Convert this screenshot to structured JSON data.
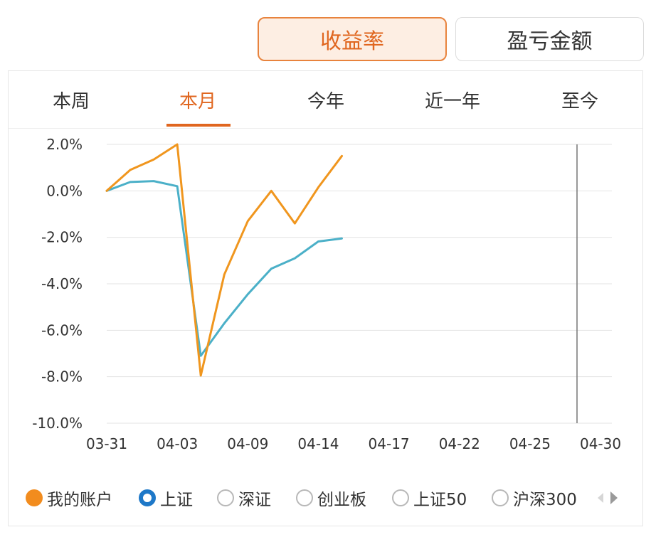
{
  "toggle": {
    "yield_label": "收益率",
    "amount_label": "盈亏金额"
  },
  "tabs": [
    {
      "label": "本周"
    },
    {
      "label": "本月",
      "active": true
    },
    {
      "label": "今年"
    },
    {
      "label": "近一年"
    },
    {
      "label": "至今"
    }
  ],
  "legend": [
    {
      "label": "我的账户",
      "state": "filled-orange"
    },
    {
      "label": "上证",
      "state": "ring-blue"
    },
    {
      "label": "深证",
      "state": "empty"
    },
    {
      "label": "创业板",
      "state": "empty"
    },
    {
      "label": "上证50",
      "state": "empty"
    },
    {
      "label": "沪深300",
      "state": "empty"
    }
  ],
  "colors": {
    "accent": "#e0661f",
    "account_line": "#f0961e",
    "index_line": "#4bb0c8"
  },
  "chart_data": {
    "type": "line",
    "x_ticks": [
      "03-31",
      "04-03",
      "04-09",
      "04-14",
      "04-17",
      "04-22",
      "04-25",
      "04-30"
    ],
    "y_ticks": [
      "2.0%",
      "0.0%",
      "-2.0%",
      "-4.0%",
      "-6.0%",
      "-8.0%",
      "-10.0%"
    ],
    "ylim": [
      -10,
      2
    ],
    "vertical_marker_index": 20,
    "series": [
      {
        "name": "我的账户",
        "color": "#f0961e",
        "values": [
          0.0,
          0.9,
          1.35,
          2.0,
          -7.95,
          -3.6,
          -1.3,
          0.0,
          -1.4,
          0.15,
          1.5
        ]
      },
      {
        "name": "上证",
        "color": "#4bb0c8",
        "values": [
          0.0,
          0.38,
          0.42,
          0.2,
          -7.1,
          -5.7,
          -4.45,
          -3.35,
          -2.9,
          -2.18,
          -2.05
        ]
      }
    ]
  }
}
